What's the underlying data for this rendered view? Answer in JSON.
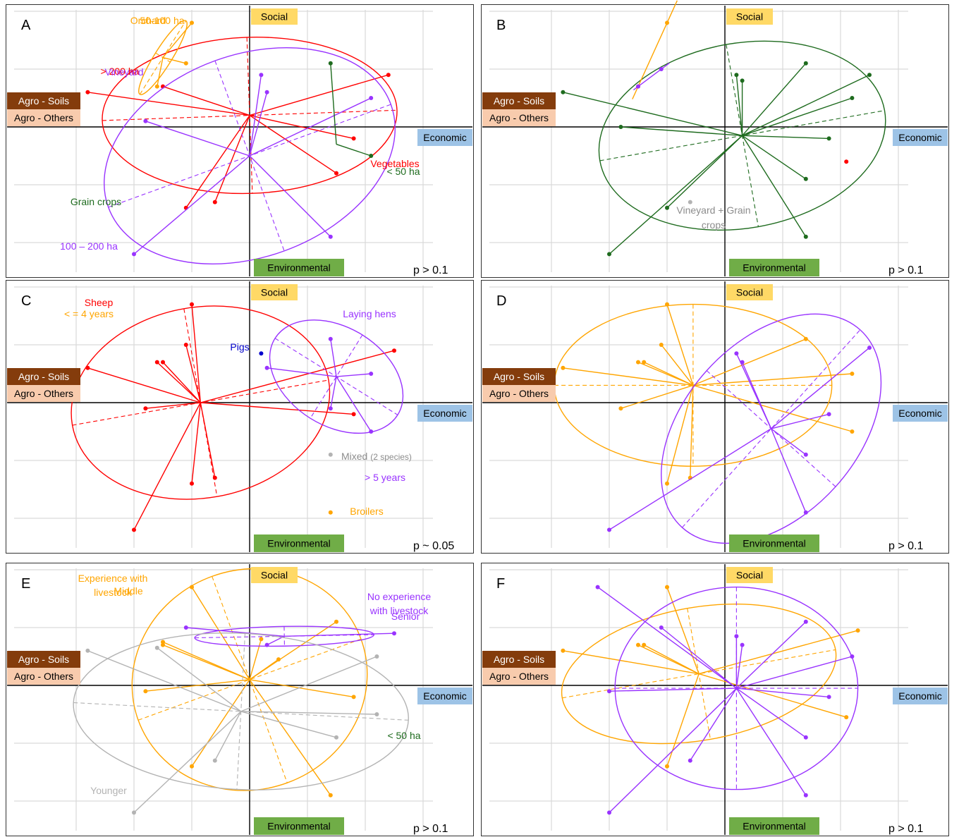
{
  "axes": {
    "social": "Social",
    "economic": "Economic",
    "environmental": "Environmental",
    "agro_soils": "Agro - Soils",
    "agro_others": "Agro - Others"
  },
  "colors": {
    "social_box": "#ffd966",
    "economic_box": "#9dc3e6",
    "environmental_box": "#70ad47",
    "agro_soils_box": "#843c0c",
    "agro_others_box": "#f8cbad",
    "red": "#ff0000",
    "purple": "#9933ff",
    "orange": "#ffa500",
    "green": "#1e6b1e",
    "gray": "#b3b3b3",
    "blue": "#0000cc"
  },
  "chart_data": [
    {
      "type": "scatter",
      "panel": "A",
      "p_value": "p > 0.1",
      "series": [
        {
          "name": "> 200 ha",
          "color": "red",
          "center": [
            0,
            0.2
          ],
          "points": [
            [
              -2.8,
              0.6
            ],
            [
              -1.5,
              0.7
            ],
            [
              1.8,
              -0.2
            ],
            [
              2.4,
              0.9
            ],
            [
              1.5,
              -0.8
            ],
            [
              -1.1,
              -1.4
            ],
            [
              -0.6,
              -1.3
            ]
          ],
          "ellipse": {
            "rx": 2.55,
            "ry": 1.35,
            "rot": -2
          }
        },
        {
          "name": "100 – 200 ha",
          "color": "purple",
          "center": [
            0,
            -0.5
          ],
          "points": [
            [
              0.2,
              0.9
            ],
            [
              -1.8,
              0.1
            ],
            [
              2.1,
              0.5
            ],
            [
              1.4,
              -1.9
            ],
            [
              -2.0,
              -2.2
            ],
            [
              0.3,
              0.6
            ]
          ],
          "ellipse": {
            "rx": 2.6,
            "ry": 1.75,
            "rot": -20
          }
        },
        {
          "name": "50-100 ha",
          "color": "orange",
          "center": [
            -1.5,
            1.2
          ],
          "points": [
            [
              -1.6,
              0.7
            ],
            [
              -1.1,
              1.1
            ],
            [
              -1.0,
              1.8
            ]
          ],
          "ellipse": {
            "rx": 0.75,
            "ry": 0.15,
            "rot": -58
          }
        },
        {
          "name": "< 50 ha",
          "color": "green",
          "center": [
            1.5,
            -0.3
          ],
          "points": [
            [
              1.4,
              1.1
            ],
            [
              2.1,
              -0.5
            ]
          ],
          "ellipse": null
        }
      ]
    },
    {
      "type": "scatter",
      "panel": "B",
      "p_value": "p > 0.1",
      "series": [
        {
          "name": "Grain crops",
          "color": "green",
          "center": [
            0.3,
            -0.15
          ],
          "points": [
            [
              -2.8,
              0.6
            ],
            [
              -1.8,
              0
            ],
            [
              0.2,
              0.9
            ],
            [
              0.3,
              0.8
            ],
            [
              1.4,
              1.1
            ],
            [
              2.5,
              0.9
            ],
            [
              2.2,
              0.5
            ],
            [
              1.8,
              -0.2
            ],
            [
              1.4,
              -0.9
            ],
            [
              1.4,
              -1.9
            ],
            [
              -1.0,
              -1.4
            ],
            [
              -2.0,
              -2.2
            ]
          ],
          "ellipse": {
            "rx": 2.5,
            "ry": 1.6,
            "rot": -10
          }
        },
        {
          "name": "Orchard",
          "color": "orange",
          "center": null,
          "points": [
            [
              -1.0,
              1.8
            ],
            [
              -1.5,
              0.7
            ]
          ],
          "ellipse": null
        },
        {
          "name": "Vineyard",
          "color": "purple",
          "center": null,
          "points": [
            [
              -1.1,
              1.0
            ],
            [
              -1.5,
              0.7
            ]
          ],
          "ellipse": null
        },
        {
          "name": "Vegetables",
          "color": "red",
          "center": null,
          "points": [
            [
              2.1,
              -0.6
            ]
          ],
          "ellipse": null
        },
        {
          "name": "Vineyard + Grain crops",
          "color": "gray",
          "center": null,
          "points": [
            [
              -0.6,
              -1.3
            ]
          ],
          "ellipse": null
        }
      ]
    },
    {
      "type": "scatter",
      "panel": "C",
      "p_value": "p ~ 0.05",
      "series": [
        {
          "name": "Sheep",
          "color": "red",
          "center": [
            -0.85,
            0
          ],
          "points": [
            [
              -2.8,
              0.6
            ],
            [
              -1.6,
              0.7
            ],
            [
              -1.5,
              0.7
            ],
            [
              -1.1,
              1.0
            ],
            [
              -1.8,
              -0.1
            ],
            [
              -1.0,
              1.7
            ],
            [
              -1.0,
              -1.4
            ],
            [
              -0.6,
              -1.3
            ],
            [
              -2.0,
              -2.2
            ],
            [
              2.5,
              0.9
            ],
            [
              1.8,
              -0.2
            ]
          ],
          "ellipse": {
            "rx": 2.25,
            "ry": 1.65,
            "rot": -10
          }
        },
        {
          "name": "Laying hens",
          "color": "purple",
          "center": [
            1.5,
            0.45
          ],
          "points": [
            [
              0.3,
              0.6
            ],
            [
              1.4,
              1.1
            ],
            [
              2.1,
              0.5
            ],
            [
              2.1,
              -0.5
            ],
            [
              1.4,
              -0.1
            ]
          ],
          "ellipse": {
            "rx": 1.25,
            "ry": 0.85,
            "rot": 32
          }
        },
        {
          "name": "Pigs",
          "color": "blue",
          "center": null,
          "points": [
            [
              0.2,
              0.85
            ]
          ],
          "ellipse": null
        },
        {
          "name": "Mixed",
          "color": "gray",
          "center": null,
          "points": [
            [
              1.4,
              -0.9
            ]
          ],
          "ellipse": null
        },
        {
          "name": "Broilers",
          "color": "orange",
          "center": null,
          "points": [
            [
              1.4,
              -1.9
            ]
          ],
          "ellipse": null
        }
      ]
    },
    {
      "type": "scatter",
      "panel": "D",
      "p_value": "p > 0.1",
      "series": [
        {
          "name": "< = 4 years",
          "color": "orange",
          "center": [
            -0.55,
            0.3
          ],
          "points": [
            [
              -2.8,
              0.6
            ],
            [
              -1.5,
              0.7
            ],
            [
              -1.4,
              0.7
            ],
            [
              -1.1,
              1.0
            ],
            [
              -1.8,
              -0.1
            ],
            [
              -1.0,
              1.7
            ],
            [
              1.4,
              1.1
            ],
            [
              2.2,
              0.5
            ],
            [
              2.2,
              -0.5
            ],
            [
              -1.0,
              -1.4
            ],
            [
              -0.6,
              -1.3
            ]
          ],
          "ellipse": {
            "rx": 2.4,
            "ry": 1.4,
            "rot": 0
          }
        },
        {
          "name": "> 5 years",
          "color": "purple",
          "center": [
            0.8,
            -0.45
          ],
          "points": [
            [
              0.2,
              0.85
            ],
            [
              0.3,
              0.7
            ],
            [
              2.5,
              0.95
            ],
            [
              1.8,
              -0.2
            ],
            [
              1.4,
              -0.9
            ],
            [
              1.4,
              -1.9
            ],
            [
              -2.0,
              -2.2
            ]
          ],
          "ellipse": {
            "rx": 2.3,
            "ry": 1.5,
            "rot": -48
          }
        }
      ]
    },
    {
      "type": "scatter",
      "panel": "E",
      "p_value": "p > 0.1",
      "series": [
        {
          "name": "Middle",
          "color": "orange",
          "center": [
            0,
            0.1
          ],
          "points": [
            [
              -1.5,
              0.7
            ],
            [
              -1.8,
              -0.1
            ],
            [
              -1.0,
              1.7
            ],
            [
              1.5,
              1.1
            ],
            [
              1.8,
              -0.2
            ],
            [
              1.4,
              -1.9
            ],
            [
              -1.0,
              -1.4
            ],
            [
              0.2,
              0.8
            ],
            [
              -1.5,
              0.75
            ],
            [
              0.5,
              0.45
            ]
          ],
          "ellipse": {
            "rx": 2.05,
            "ry": 1.9,
            "rot": -20
          }
        },
        {
          "name": "Senior",
          "color": "purple",
          "center": [
            0.6,
            0.85
          ],
          "points": [
            [
              -1.1,
              1.0
            ],
            [
              2.5,
              0.9
            ],
            [
              0.3,
              0.7
            ]
          ],
          "ellipse": {
            "rx": 1.55,
            "ry": 0.17,
            "rot": -1
          }
        },
        {
          "name": "Younger",
          "color": "gray",
          "center": [
            -0.15,
            -0.45
          ],
          "points": [
            [
              -2.8,
              0.6
            ],
            [
              -1.6,
              0.65
            ],
            [
              2.2,
              0.5
            ],
            [
              1.5,
              -0.9
            ],
            [
              -0.6,
              -1.3
            ],
            [
              -2.0,
              -2.2
            ],
            [
              2.2,
              -0.5
            ]
          ],
          "ellipse": {
            "rx": 2.9,
            "ry": 1.35,
            "rot": 3
          }
        }
      ]
    },
    {
      "type": "scatter",
      "panel": "F",
      "p_value": "p > 0.1",
      "series": [
        {
          "name": "Experience with livestock",
          "color": "orange",
          "center": [
            -0.45,
            0.2
          ],
          "points": [
            [
              -2.8,
              0.6
            ],
            [
              -1.5,
              0.7
            ],
            [
              -1.4,
              0.7
            ],
            [
              -1.0,
              1.7
            ],
            [
              2.3,
              0.95
            ],
            [
              2.1,
              -0.55
            ],
            [
              -1.0,
              -1.4
            ]
          ],
          "ellipse": {
            "rx": 2.4,
            "ry": 1.15,
            "rot": -10
          }
        },
        {
          "name": "No experience with livestock",
          "color": "purple",
          "center": [
            0.2,
            -0.05
          ],
          "points": [
            [
              -2.2,
              1.7
            ],
            [
              -1.1,
              1.0
            ],
            [
              -2.0,
              -0.1
            ],
            [
              0.2,
              0.85
            ],
            [
              0.3,
              0.7
            ],
            [
              1.4,
              1.1
            ],
            [
              2.2,
              0.5
            ],
            [
              1.8,
              -0.2
            ],
            [
              1.4,
              -0.9
            ],
            [
              1.4,
              -1.9
            ],
            [
              -0.6,
              -1.3
            ],
            [
              -2.0,
              -2.2
            ]
          ],
          "ellipse": {
            "rx": 2.1,
            "ry": 1.75,
            "rot": 0
          }
        }
      ]
    }
  ]
}
